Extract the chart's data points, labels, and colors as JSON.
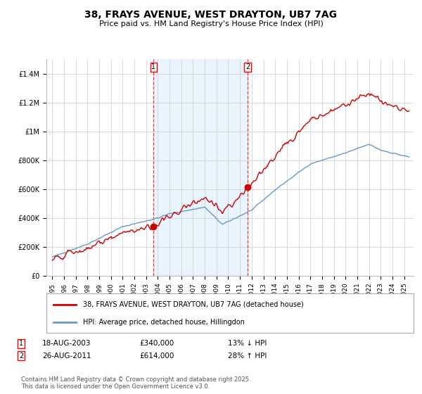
{
  "title": "38, FRAYS AVENUE, WEST DRAYTON, UB7 7AG",
  "subtitle": "Price paid vs. HM Land Registry's House Price Index (HPI)",
  "legend_entries": [
    "38, FRAYS AVENUE, WEST DRAYTON, UB7 7AG (detached house)",
    "HPI: Average price, detached house, Hillingdon"
  ],
  "sale1_date": "18-AUG-2003",
  "sale1_price": 340000,
  "sale1_pct": "13% ↓ HPI",
  "sale2_date": "26-AUG-2011",
  "sale2_price": 614000,
  "sale2_pct": "28% ↑ HPI",
  "sale1_x": 2003.63,
  "sale2_x": 2011.65,
  "footer": "Contains HM Land Registry data © Crown copyright and database right 2025.\nThis data is licensed under the Open Government Licence v3.0.",
  "line_color_property": "#cc0000",
  "line_color_hpi": "#6699cc",
  "background_fill": "#ddeeff",
  "ylim": [
    0,
    1500000
  ],
  "yticks": [
    0,
    200000,
    400000,
    600000,
    800000,
    1000000,
    1200000,
    1400000
  ],
  "ytick_labels": [
    "£0",
    "£200K",
    "£400K",
    "£600K",
    "£800K",
    "£1M",
    "£1.2M",
    "£1.4M"
  ]
}
